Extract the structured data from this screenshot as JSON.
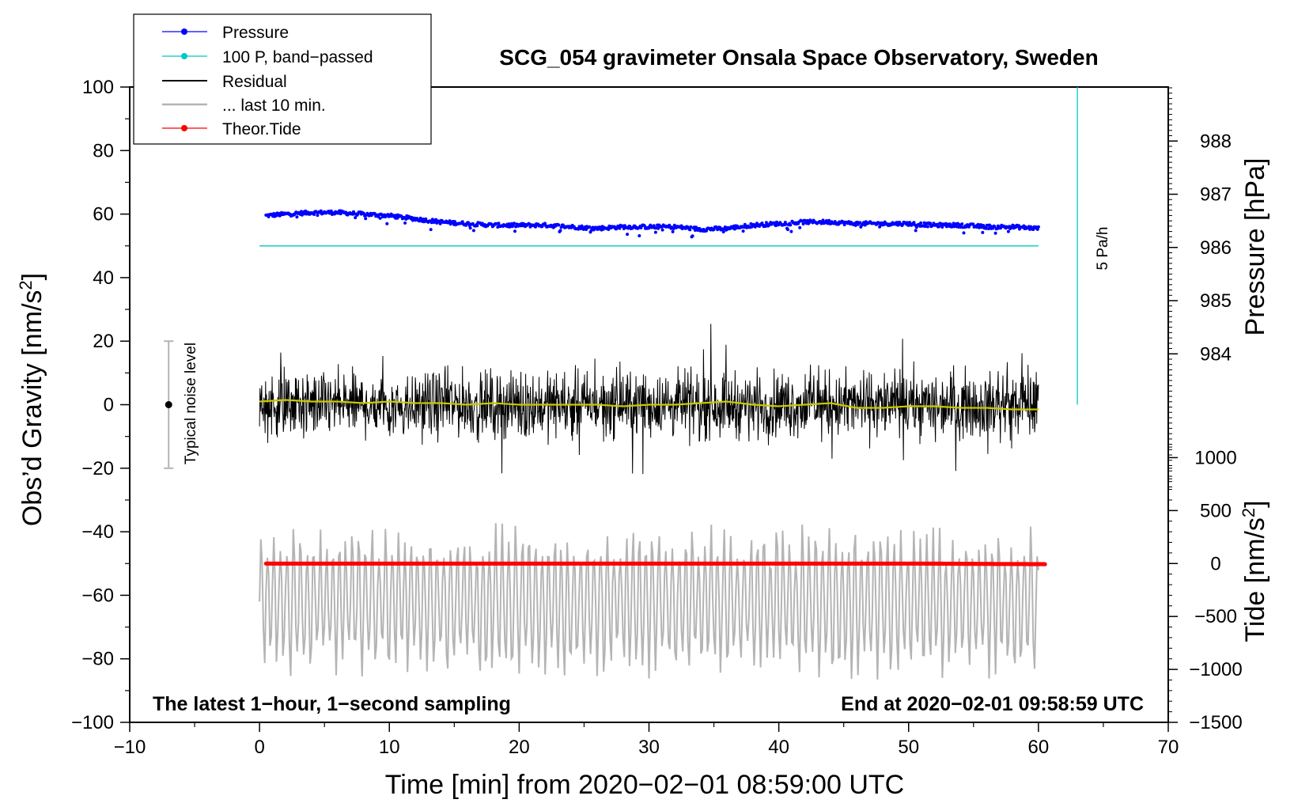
{
  "chart_data": {
    "type": "line",
    "title": "SCG_054 gravimeter Onsala Space Observatory, Sweden",
    "xlabel": "Time [min] from 2020−02−01 08:59:00 UTC",
    "ylabel_main": "Obs’d Gravity [nm/s",
    "ylabel_main_sup": "2",
    "ylabel_main_end": "]",
    "ylabel_pressure": "Pressure [hPa]",
    "ylabel_tide": "Tide [nm/s",
    "ylabel_tide_sup": "2",
    "ylabel_tide_end": "]",
    "xlim": [
      -10,
      70
    ],
    "ylim": [
      -100,
      100
    ],
    "x_ticks": [
      -10,
      0,
      10,
      20,
      30,
      40,
      50,
      60,
      70
    ],
    "x_tick_labels": [
      "−10",
      "0",
      "10",
      "20",
      "30",
      "40",
      "50",
      "60",
      "70"
    ],
    "y_ticks": [
      -100,
      -80,
      -60,
      -40,
      -20,
      0,
      20,
      40,
      60,
      80,
      100
    ],
    "y_tick_labels": [
      "−100",
      "−80",
      "−60",
      "−40",
      "−20",
      "0",
      "20",
      "40",
      "60",
      "80",
      "100"
    ],
    "pressure_axis": {
      "ticks": [
        984,
        985,
        986,
        987,
        988
      ],
      "tick_labels": [
        "984",
        "985",
        "986",
        "987",
        "988"
      ],
      "data_at_y": [
        [
          984,
          16
        ],
        [
          988,
          83
        ]
      ]
    },
    "tide_axis": {
      "ticks": [
        -1500,
        -1000,
        -500,
        0,
        500,
        1000
      ],
      "tick_labels": [
        "−1500",
        "−1000",
        "−500",
        "0",
        "500",
        "1000"
      ],
      "data_at_y": [
        [
          -1500,
          -100
        ],
        [
          0,
          -50
        ]
      ]
    },
    "legend": [
      {
        "label": "Pressure",
        "color": "#0000ff",
        "marker": "dot"
      },
      {
        "label": "100 P, band−passed",
        "color": "#00c8c8",
        "marker": "dot"
      },
      {
        "label": "Residual",
        "color": "#000000",
        "marker": "none"
      },
      {
        "label": "... last 10 min.",
        "color": "#b4b4b4",
        "marker": "none"
      },
      {
        "label": "Theor.Tide",
        "color": "#ff0000",
        "marker": "dot"
      }
    ],
    "annotations": {
      "left": "The latest 1−hour, 1−second sampling",
      "right": "End at 2020−02‑01 09:58:59 UTC",
      "noise": "Typical noise level",
      "rate": "5 Pa/h"
    },
    "noise_bar": {
      "x": -7,
      "y": 0,
      "ymin": -20,
      "ymax": 20
    },
    "rate_bar": {
      "x": 63,
      "ymin": 0,
      "ymax": 100
    },
    "series": [
      {
        "name": "Pressure",
        "color": "#0000ff",
        "style": "dots",
        "x": [
          0.5,
          2,
          4,
          6,
          8,
          10,
          12,
          14,
          16,
          18,
          20,
          22,
          24,
          26,
          28,
          30,
          32,
          34,
          36,
          38,
          40,
          42,
          44,
          46,
          48,
          50,
          52,
          54,
          56,
          58,
          60
        ],
        "y": [
          59.5,
          60,
          60.5,
          60.5,
          60,
          59.5,
          58.5,
          57.5,
          57,
          56.5,
          56.5,
          56.5,
          56,
          55.5,
          56,
          56,
          56,
          55.2,
          55.5,
          56.5,
          57,
          57.5,
          57.5,
          57,
          57,
          57,
          56.5,
          56.5,
          56,
          56,
          55.5
        ]
      },
      {
        "name": "100 P, band−passed",
        "color": "#00c8c8",
        "style": "line",
        "x": [
          0,
          60
        ],
        "y": [
          50,
          50
        ]
      },
      {
        "name": "Residual",
        "color": "#000000",
        "style": "noise",
        "x": [
          0,
          60
        ],
        "y_center": [
          0,
          0
        ],
        "amplitude": 12
      },
      {
        "name": "Residual smoothed",
        "color": "#c8c800",
        "style": "line",
        "x": [
          0,
          2,
          4,
          6,
          8,
          10,
          12,
          14,
          16,
          18,
          20,
          22,
          24,
          26,
          28,
          30,
          32,
          34,
          36,
          38,
          40,
          42,
          44,
          46,
          48,
          50,
          52,
          54,
          56,
          58,
          60
        ],
        "y": [
          1,
          1.5,
          1,
          1,
          0.5,
          1,
          0.5,
          0.5,
          0,
          0.5,
          0,
          0,
          0,
          0,
          -0.5,
          0,
          0,
          0.5,
          1,
          0,
          -0.5,
          0,
          0.5,
          -1,
          -1,
          -0.5,
          -0.5,
          -1,
          -1,
          -1.5,
          -1.5
        ]
      },
      {
        "name": "... last 10 min.",
        "color": "#b4b4b4",
        "style": "oscillation",
        "x": [
          0,
          60
        ],
        "y_center": [
          -62,
          -62
        ],
        "amplitude": 22
      },
      {
        "name": "Theor.Tide",
        "color": "#ff0000",
        "style": "dots",
        "x": [
          0.5,
          10,
          20,
          30,
          40,
          50,
          60.5
        ],
        "y": [
          -50,
          -50,
          -50,
          -50,
          -50,
          -50,
          -50.2
        ]
      }
    ]
  }
}
